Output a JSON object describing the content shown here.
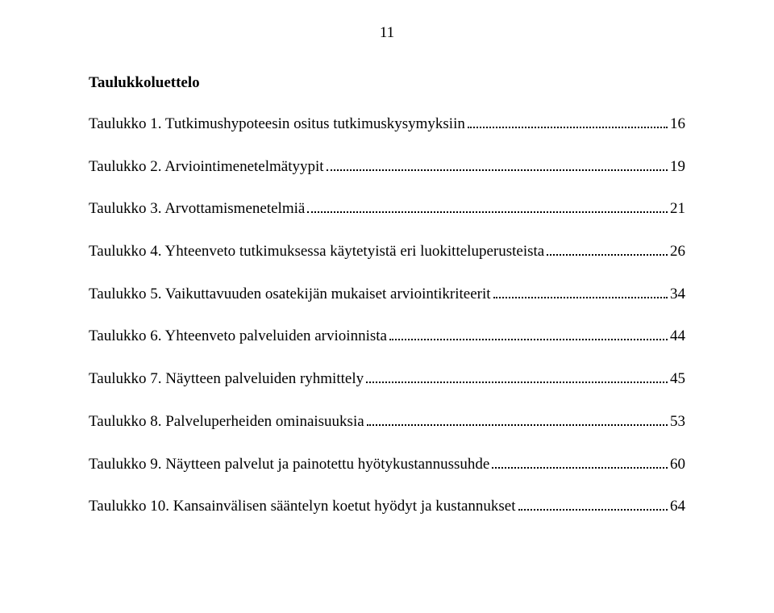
{
  "page_number": "11",
  "heading": "Taulukkoluettelo",
  "entries": [
    {
      "label": "Taulukko 1. Tutkimushypoteesin ositus tutkimuskysymyksiin",
      "page": "16"
    },
    {
      "label": "Taulukko 2. Arviointimenetelmätyypit",
      "page": "19"
    },
    {
      "label": "Taulukko 3. Arvottamismenetelmiä",
      "page": "21"
    },
    {
      "label": "Taulukko 4. Yhteenveto tutkimuksessa käytetyistä eri luokitteluperusteista",
      "page": "26"
    },
    {
      "label": "Taulukko 5. Vaikuttavuuden osatekijän mukaiset arviointikriteerit",
      "page": "34"
    },
    {
      "label": "Taulukko 6. Yhteenveto palveluiden arvioinnista",
      "page": "44"
    },
    {
      "label": "Taulukko 7. Näytteen palveluiden ryhmittely",
      "page": "45"
    },
    {
      "label": "Taulukko 8. Palveluperheiden ominaisuuksia",
      "page": "53"
    },
    {
      "label": "Taulukko 9. Näytteen palvelut ja painotettu hyötykustannussuhde",
      "page": "60"
    },
    {
      "label": "Taulukko 10. Kansainvälisen sääntelyn koetut hyödyt ja kustannukset",
      "page": "64"
    }
  ],
  "colors": {
    "text": "#000000",
    "background": "#ffffff"
  },
  "fonts": {
    "family": "Times New Roman",
    "body_size_pt": 14
  }
}
